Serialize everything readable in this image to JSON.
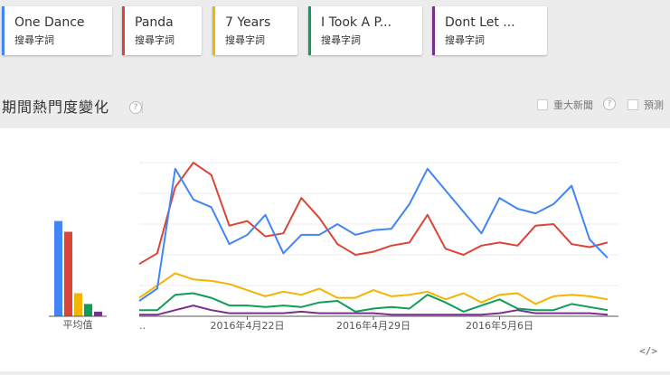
{
  "terms": [
    {
      "label": "One Dance",
      "sub": "搜尋字詞",
      "color": "#4285f4"
    },
    {
      "label": "Panda",
      "sub": "搜尋字詞",
      "color": "#db4437"
    },
    {
      "label": "7 Years",
      "sub": "搜尋字詞",
      "color": "#f4b400"
    },
    {
      "label": "I Took A P...",
      "sub": "搜尋字詞",
      "color": "#0f9d58"
    },
    {
      "label": "Dont Let ...",
      "sub": "搜尋字詞",
      "color": "#7b2e8e"
    }
  ],
  "section": {
    "title": "期間熱門度變化",
    "help": "?"
  },
  "options": {
    "news": "重大新聞",
    "news_help": "?",
    "forecast": "預測"
  },
  "embed_icon": "</>",
  "chart_data": [
    {
      "type": "bar",
      "xlabel": "平均值",
      "categories": [
        "One Dance",
        "Panda",
        "7 Years",
        "I Took A P...",
        "Dont Let ..."
      ],
      "colors": [
        "#4285f4",
        "#db4437",
        "#f4b400",
        "#0f9d58",
        "#7b2e8e"
      ],
      "values": [
        62,
        55,
        15,
        8,
        3
      ],
      "ylim": [
        0,
        100
      ]
    },
    {
      "type": "line",
      "x_start_label": "..",
      "x_tick_labels": [
        "2016年4月22日",
        "2016年4月29日",
        "2016年5月6日"
      ],
      "x_tick_index": [
        6,
        13,
        20
      ],
      "ylim": [
        0,
        100
      ],
      "grid": true,
      "series": [
        {
          "name": "One Dance",
          "color": "#4285f4",
          "values": [
            10,
            18,
            96,
            76,
            71,
            47,
            53,
            66,
            41,
            53,
            53,
            60,
            53,
            56,
            57,
            73,
            96,
            82,
            68,
            54,
            77,
            70,
            67,
            73,
            85,
            50,
            38
          ]
        },
        {
          "name": "Panda",
          "color": "#db4437",
          "values": [
            34,
            41,
            84,
            100,
            92,
            59,
            62,
            52,
            54,
            77,
            64,
            47,
            40,
            42,
            46,
            48,
            66,
            44,
            40,
            46,
            48,
            46,
            59,
            60,
            47,
            45,
            48
          ]
        },
        {
          "name": "7 Years",
          "color": "#f4b400",
          "values": [
            12,
            20,
            28,
            24,
            23,
            21,
            17,
            13,
            16,
            14,
            18,
            12,
            12,
            17,
            13,
            14,
            16,
            11,
            15,
            9,
            14,
            15,
            8,
            13,
            14,
            13,
            11
          ]
        },
        {
          "name": "I Took A P...",
          "color": "#0f9d58",
          "values": [
            4,
            4,
            14,
            15,
            12,
            7,
            7,
            6,
            7,
            6,
            9,
            10,
            3,
            5,
            6,
            5,
            14,
            9,
            3,
            7,
            11,
            5,
            4,
            4,
            8,
            6,
            4
          ]
        },
        {
          "name": "Dont Let ...",
          "color": "#7b2e8e",
          "values": [
            1,
            1,
            4,
            7,
            4,
            2,
            2,
            2,
            2,
            3,
            2,
            2,
            2,
            2,
            1,
            1,
            1,
            1,
            1,
            1,
            2,
            4,
            2,
            2,
            2,
            2,
            1
          ]
        }
      ]
    }
  ]
}
